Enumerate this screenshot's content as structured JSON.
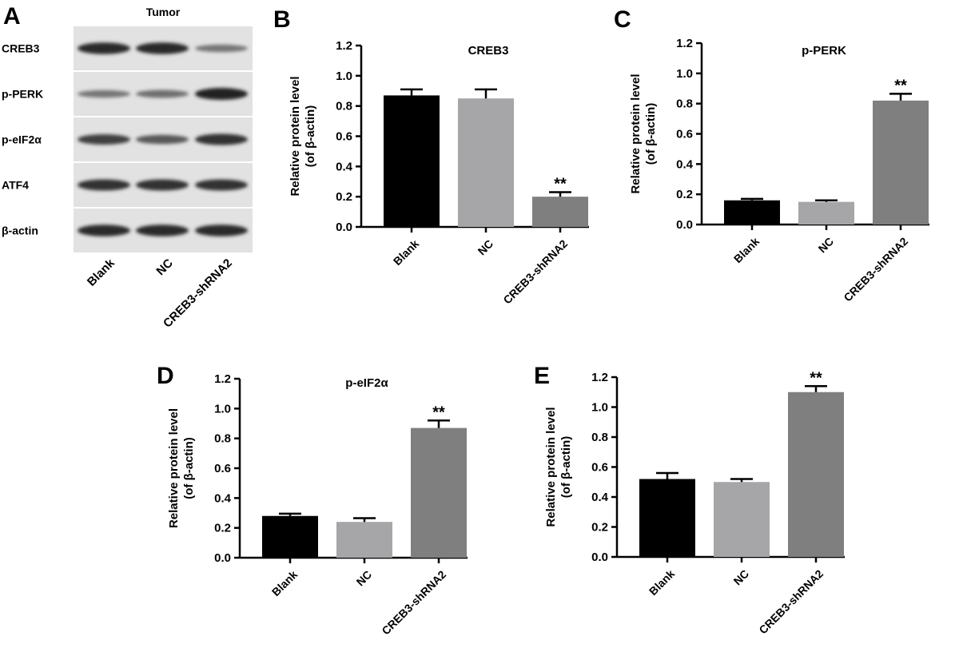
{
  "panel_a": {
    "letter": "A",
    "title": "Tumor",
    "rows": [
      "CREB3",
      "p-PERK",
      "p-eIF2α",
      "ATF4",
      "β-actin"
    ],
    "lanes": [
      "Blank",
      "NC",
      "CREB3-shRNA2"
    ],
    "band_intensity": [
      [
        0.85,
        0.85,
        0.35
      ],
      [
        0.35,
        0.4,
        0.9
      ],
      [
        0.7,
        0.55,
        0.8
      ],
      [
        0.8,
        0.8,
        0.8
      ],
      [
        0.85,
        0.85,
        0.85
      ]
    ]
  },
  "ylabel_line1": "Relative protein level",
  "ylabel_line2": "(of β-actin)",
  "bar_colors": [
    "#000000",
    "#a6a6a8",
    "#7f7f7f"
  ],
  "chart_data": [
    {
      "letter": "B",
      "type": "bar",
      "title": "CREB3",
      "categories": [
        "Blank",
        "NC",
        "CREB3-shRNA2"
      ],
      "values": [
        0.87,
        0.85,
        0.2
      ],
      "errors": [
        0.04,
        0.06,
        0.03
      ],
      "significance": [
        "",
        "",
        "**"
      ],
      "ylim": [
        0,
        1.2
      ],
      "yticks": [
        "0.0",
        "0.2",
        "0.4",
        "0.6",
        "0.8",
        "1.0",
        "1.2"
      ]
    },
    {
      "letter": "C",
      "type": "bar",
      "title": "p-PERK",
      "categories": [
        "Blank",
        "NC",
        "CREB3-shRNA2"
      ],
      "values": [
        0.16,
        0.15,
        0.82
      ],
      "errors": [
        0.01,
        0.01,
        0.045
      ],
      "significance": [
        "",
        "",
        "**"
      ],
      "ylim": [
        0,
        1.2
      ],
      "yticks": [
        "0.0",
        "0.2",
        "0.4",
        "0.6",
        "0.8",
        "1.0",
        "1.2"
      ]
    },
    {
      "letter": "D",
      "type": "bar",
      "title": "p-eIF2α",
      "categories": [
        "Blank",
        "NC",
        "CREB3-shRNA2"
      ],
      "values": [
        0.28,
        0.24,
        0.87
      ],
      "errors": [
        0.015,
        0.025,
        0.05
      ],
      "significance": [
        "",
        "",
        "**"
      ],
      "ylim": [
        0,
        1.2
      ],
      "yticks": [
        "0.0",
        "0.2",
        "0.4",
        "0.6",
        "0.8",
        "1.0",
        "1.2"
      ]
    },
    {
      "letter": "E",
      "type": "bar",
      "title": "",
      "categories": [
        "Blank",
        "NC",
        "CREB3-shRNA2"
      ],
      "values": [
        0.52,
        0.5,
        1.1
      ],
      "errors": [
        0.04,
        0.02,
        0.04
      ],
      "significance": [
        "",
        "",
        "**"
      ],
      "ylim": [
        0,
        1.2
      ],
      "yticks": [
        "0.0",
        "0.2",
        "0.4",
        "0.6",
        "0.8",
        "1.0",
        "1.2"
      ]
    }
  ]
}
